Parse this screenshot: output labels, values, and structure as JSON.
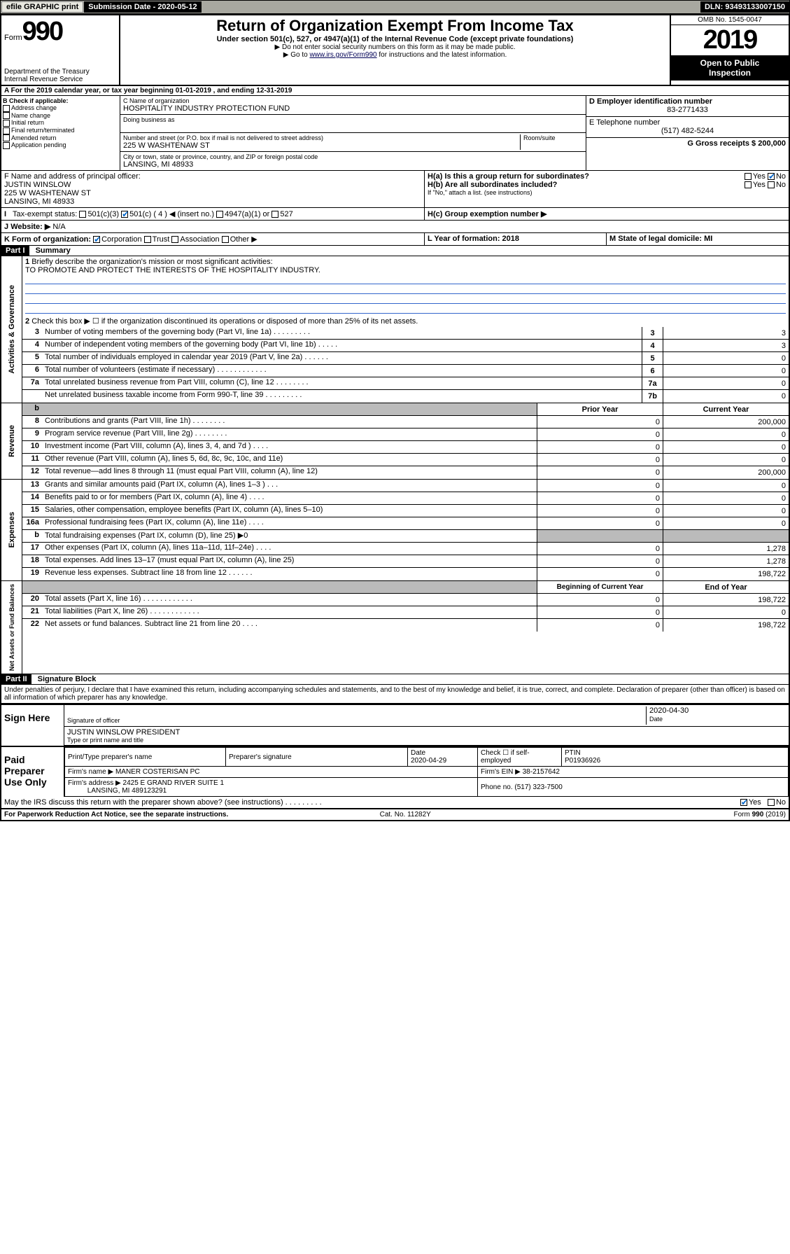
{
  "topbar": {
    "efile": "efile GRAPHIC print",
    "sub_label": "Submission Date - 2020-05-12",
    "dln": "DLN: 93493133007150"
  },
  "header": {
    "form_word": "Form",
    "form_num": "990",
    "dept1": "Department of the Treasury",
    "dept2": "Internal Revenue Service",
    "title": "Return of Organization Exempt From Income Tax",
    "sub": "Under section 501(c), 527, or 4947(a)(1) of the Internal Revenue Code (except private foundations)",
    "note1": "▶ Do not enter social security numbers on this form as it may be made public.",
    "note2_pre": "▶ Go to ",
    "note2_link": "www.irs.gov/Form990",
    "note2_post": " for instructions and the latest information.",
    "omb": "OMB No. 1545-0047",
    "year": "2019",
    "open1": "Open to Public",
    "open2": "Inspection"
  },
  "a_line": "A For the 2019 calendar year, or tax year beginning 01-01-2019    , and ending 12-31-2019",
  "b": {
    "label": "B Check if applicable:",
    "o1": "Address change",
    "o2": "Name change",
    "o3": "Initial return",
    "o4": "Final return/terminated",
    "o5": "Amended return",
    "o6": "Application pending"
  },
  "c": {
    "label": "C Name of organization",
    "name": "HOSPITALITY INDUSTRY PROTECTION FUND",
    "dba_label": "Doing business as",
    "addr_label": "Number and street (or P.O. box if mail is not delivered to street address)",
    "room_label": "Room/suite",
    "addr": "225 W WASHTENAW ST",
    "city_label": "City or town, state or province, country, and ZIP or foreign postal code",
    "city": "LANSING, MI  48933"
  },
  "d": {
    "label": "D Employer identification number",
    "ein": "83-2771433"
  },
  "e": {
    "label": "E Telephone number",
    "phone": "(517) 482-5244"
  },
  "g": {
    "label": "G Gross receipts $ 200,000"
  },
  "f": {
    "label": "F  Name and address of principal officer:",
    "name": "JUSTIN WINSLOW",
    "addr1": "225 W WASHTENAW ST",
    "addr2": "LANSING, MI  48933"
  },
  "h": {
    "a": "H(a)  Is this a group return for subordinates?",
    "yes": "Yes",
    "no": "No",
    "b": "H(b)  Are all subordinates included?",
    "b_note": "If \"No,\" attach a list. (see instructions)",
    "c": "H(c)  Group exemption number ▶"
  },
  "i": {
    "label": "Tax-exempt status:",
    "o1": "501(c)(3)",
    "o2": "501(c) ( 4 ) ◀ (insert no.)",
    "o3": "4947(a)(1) or",
    "o4": "527"
  },
  "j": {
    "label": "J",
    "text": "Website: ▶",
    "val": "N/A"
  },
  "k": {
    "label": "K Form of organization:",
    "o1": "Corporation",
    "o2": "Trust",
    "o3": "Association",
    "o4": "Other ▶"
  },
  "l": {
    "label": "L Year of formation: 2018"
  },
  "m": {
    "label": "M State of legal domicile: MI"
  },
  "part1": {
    "hdr": "Part I",
    "title": "Summary",
    "l1": "Briefly describe the organization's mission or most significant activities:",
    "mission": "TO PROMOTE AND PROTECT THE INTERESTS OF THE HOSPITALITY INDUSTRY.",
    "l2": "Check this box ▶ ☐  if the organization discontinued its operations or disposed of more than 25% of its net assets.",
    "vlabel1": "Activities & Governance",
    "vlabel2": "Revenue",
    "vlabel3": "Expenses",
    "vlabel4": "Net Assets or Fund Balances",
    "lines_ag": [
      {
        "n": "3",
        "t": "Number of voting members of the governing body (Part VI, line 1a)   .    .    .    .    .    .    .    .    .",
        "c": "3",
        "v": "3"
      },
      {
        "n": "4",
        "t": "Number of independent voting members of the governing body (Part VI, line 1b)   .    .    .    .    .",
        "c": "4",
        "v": "3"
      },
      {
        "n": "5",
        "t": "Total number of individuals employed in calendar year 2019 (Part V, line 2a)   .    .    .    .    .    .",
        "c": "5",
        "v": "0"
      },
      {
        "n": "6",
        "t": "Total number of volunteers (estimate if necessary)    .    .    .    .    .    .    .    .    .    .    .    .",
        "c": "6",
        "v": "0"
      },
      {
        "n": "7a",
        "t": "Total unrelated business revenue from Part VIII, column (C), line 12   .    .    .    .    .    .    .    .",
        "c": "7a",
        "v": "0"
      },
      {
        "n": "",
        "t": "Net unrelated business taxable income from Form 990-T, line 39    .    .    .    .    .    .    .    .    .",
        "c": "7b",
        "v": "0"
      }
    ],
    "th_py": "Prior Year",
    "th_cy": "Current Year",
    "lines_rev": [
      {
        "n": "8",
        "t": "Contributions and grants (Part VIII, line 1h)    .    .    .    .    .    .    .    .",
        "py": "0",
        "cy": "200,000"
      },
      {
        "n": "9",
        "t": "Program service revenue (Part VIII, line 2g)    .    .    .    .    .    .    .    .",
        "py": "0",
        "cy": "0"
      },
      {
        "n": "10",
        "t": "Investment income (Part VIII, column (A), lines 3, 4, and 7d )    .    .    .    .",
        "py": "0",
        "cy": "0"
      },
      {
        "n": "11",
        "t": "Other revenue (Part VIII, column (A), lines 5, 6d, 8c, 9c, 10c, and 11e)",
        "py": "0",
        "cy": "0"
      },
      {
        "n": "12",
        "t": "Total revenue—add lines 8 through 11 (must equal Part VIII, column (A), line 12)",
        "py": "0",
        "cy": "200,000"
      }
    ],
    "lines_exp": [
      {
        "n": "13",
        "t": "Grants and similar amounts paid (Part IX, column (A), lines 1–3 )    .    .    .",
        "py": "0",
        "cy": "0"
      },
      {
        "n": "14",
        "t": "Benefits paid to or for members (Part IX, column (A), line 4)   .    .    .    .",
        "py": "0",
        "cy": "0"
      },
      {
        "n": "15",
        "t": "Salaries, other compensation, employee benefits (Part IX, column (A), lines 5–10)",
        "py": "0",
        "cy": "0"
      },
      {
        "n": "16a",
        "t": "Professional fundraising fees (Part IX, column (A), line 11e)    .    .    .    .",
        "py": "0",
        "cy": "0"
      },
      {
        "n": "b",
        "t": "Total fundraising expenses (Part IX, column (D), line 25) ▶0",
        "py": "",
        "cy": "",
        "shade": true
      },
      {
        "n": "17",
        "t": "Other expenses (Part IX, column (A), lines 11a–11d, 11f–24e)   .    .    .    .",
        "py": "0",
        "cy": "1,278"
      },
      {
        "n": "18",
        "t": "Total expenses. Add lines 13–17 (must equal Part IX, column (A), line 25)",
        "py": "0",
        "cy": "1,278"
      },
      {
        "n": "19",
        "t": "Revenue less expenses. Subtract line 18 from line 12    .    .    .    .    .    .",
        "py": "0",
        "cy": "198,722"
      }
    ],
    "th_bcy": "Beginning of Current Year",
    "th_eoy": "End of Year",
    "lines_na": [
      {
        "n": "20",
        "t": "Total assets (Part X, line 16)    .    .    .    .    .    .    .    .    .    .    .    .",
        "py": "0",
        "cy": "198,722"
      },
      {
        "n": "21",
        "t": "Total liabilities (Part X, line 26)    .    .    .    .    .    .    .    .    .    .    .    .",
        "py": "0",
        "cy": "0"
      },
      {
        "n": "22",
        "t": "Net assets or fund balances. Subtract line 21 from line 20    .    .    .    .",
        "py": "0",
        "cy": "198,722"
      }
    ]
  },
  "part2": {
    "hdr": "Part II",
    "title": "Signature Block",
    "perjury": "Under penalties of perjury, I declare that I have examined this return, including accompanying schedules and statements, and to the best of my knowledge and belief, it is true, correct, and complete. Declaration of preparer (other than officer) is based on all information of which preparer has any knowledge.",
    "sign_here": "Sign Here",
    "sig_officer": "Signature of officer",
    "sig_date": "2020-04-30",
    "date_lbl": "Date",
    "name_line": "JUSTIN WINSLOW  PRESIDENT",
    "type_name": "Type or print name and title",
    "paid": "Paid Preparer Use Only",
    "prep_name_lbl": "Print/Type preparer's name",
    "prep_sig_lbl": "Preparer's signature",
    "prep_date_lbl": "Date",
    "prep_date": "2020-04-29",
    "check_if": "Check ☐ if self-employed",
    "ptin_lbl": "PTIN",
    "ptin": "P01936926",
    "firm_name_lbl": "Firm's name     ▶",
    "firm_name": "MANER COSTERISAN PC",
    "firm_ein_lbl": "Firm's EIN ▶",
    "firm_ein": "38-2157642",
    "firm_addr_lbl": "Firm's address ▶",
    "firm_addr1": "2425 E GRAND RIVER SUITE 1",
    "firm_addr2": "LANSING, MI  489123291",
    "phone_lbl": "Phone no.",
    "phone": "(517) 323-7500",
    "discuss": "May the IRS discuss this return with the preparer shown above? (see instructions)   .    .    .    .    .    .    .    .    .",
    "yes": "Yes",
    "no": "No"
  },
  "footer": {
    "pra": "For Paperwork Reduction Act Notice, see the separate instructions.",
    "cat": "Cat. No. 11282Y",
    "form": "Form 990 (2019)"
  }
}
